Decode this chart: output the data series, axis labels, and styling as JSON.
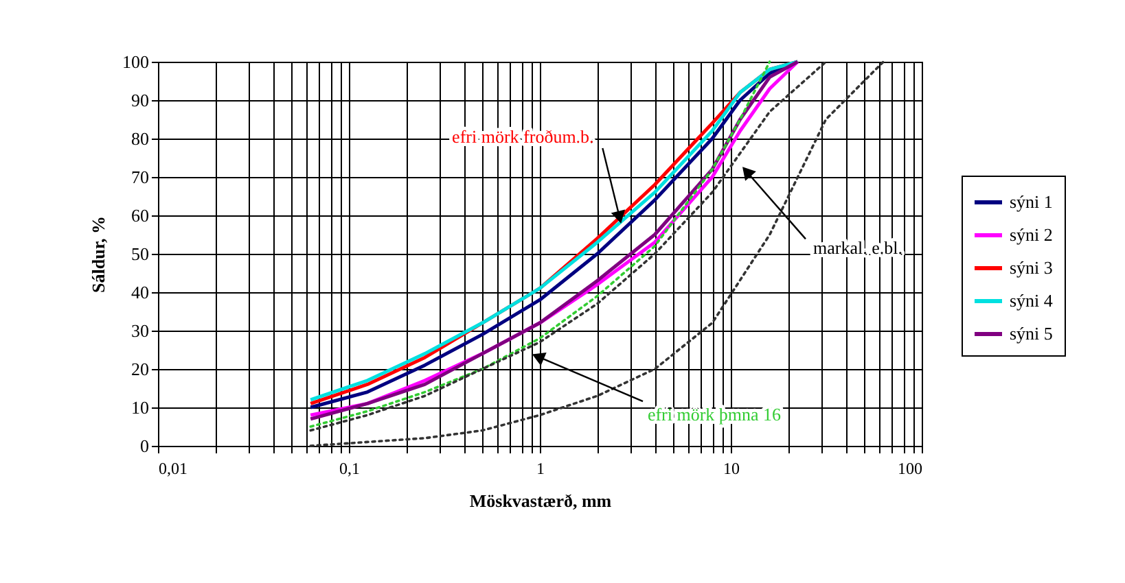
{
  "chart_data": {
    "type": "line",
    "xlabel": "Möskvastærð, mm",
    "ylabel": "Sáldur, %",
    "log": "x",
    "grid": true,
    "legend": "right",
    "xlim": [
      0.01,
      100
    ],
    "ylim": [
      0,
      100
    ],
    "xticks": [
      {
        "value": 0.01,
        "label": "0,01"
      },
      {
        "value": 0.02,
        "label": null
      },
      {
        "value": 0.03,
        "label": null
      },
      {
        "value": 0.04,
        "label": null
      },
      {
        "value": 0.05,
        "label": null
      },
      {
        "value": 0.06,
        "label": null
      },
      {
        "value": 0.07,
        "label": null
      },
      {
        "value": 0.08,
        "label": null
      },
      {
        "value": 0.09,
        "label": null
      },
      {
        "value": 0.1,
        "label": "0,1"
      },
      {
        "value": 0.2,
        "label": null
      },
      {
        "value": 0.3,
        "label": null
      },
      {
        "value": 0.4,
        "label": null
      },
      {
        "value": 0.5,
        "label": null
      },
      {
        "value": 0.6,
        "label": null
      },
      {
        "value": 0.7,
        "label": null
      },
      {
        "value": 0.8,
        "label": null
      },
      {
        "value": 0.9,
        "label": null
      },
      {
        "value": 1,
        "label": "1"
      },
      {
        "value": 2,
        "label": null
      },
      {
        "value": 3,
        "label": null
      },
      {
        "value": 4,
        "label": null
      },
      {
        "value": 5,
        "label": null
      },
      {
        "value": 6,
        "label": null
      },
      {
        "value": 7,
        "label": null
      },
      {
        "value": 8,
        "label": null
      },
      {
        "value": 9,
        "label": null
      },
      {
        "value": 10,
        "label": "10"
      },
      {
        "value": 20,
        "label": null
      },
      {
        "value": 30,
        "label": null
      },
      {
        "value": 40,
        "label": null
      },
      {
        "value": 50,
        "label": null
      },
      {
        "value": 60,
        "label": null
      },
      {
        "value": 70,
        "label": null
      },
      {
        "value": 80,
        "label": null
      },
      {
        "value": 90,
        "label": null
      },
      {
        "value": 100,
        "label": "100"
      }
    ],
    "yticks": [
      0,
      10,
      20,
      30,
      40,
      50,
      60,
      70,
      80,
      90,
      100
    ],
    "x": [
      0.063,
      0.125,
      0.25,
      0.5,
      1,
      2,
      4,
      8,
      11.2,
      16,
      22.4
    ],
    "series": [
      {
        "name": "sýni 1",
        "color": "#000080",
        "values": [
          10,
          14,
          21,
          29,
          38,
          50,
          64,
          80,
          90,
          97,
          100
        ]
      },
      {
        "name": "sýni 2",
        "color": "#ff00ff",
        "values": [
          8,
          11,
          17,
          24,
          32,
          42,
          53,
          70,
          82,
          93,
          100
        ]
      },
      {
        "name": "sýni 3",
        "color": "#ff0000",
        "values": [
          11,
          16,
          23,
          32,
          41,
          54,
          68,
          84,
          92,
          98,
          100
        ]
      },
      {
        "name": "sýni 4",
        "color": "#00e0e0",
        "values": [
          12,
          17,
          24,
          32,
          41,
          53,
          66,
          82,
          92,
          98,
          100
        ]
      },
      {
        "name": "sýni 5",
        "color": "#800080",
        "values": [
          7,
          11,
          16,
          24,
          32,
          43,
          55,
          72,
          85,
          96,
          100
        ]
      },
      {
        "color": "#33cc33",
        "line_style": "dotted",
        "x": [
          0.063,
          0.125,
          0.25,
          0.5,
          1,
          2,
          4,
          8,
          11.2,
          16
        ],
        "values": [
          5,
          9,
          14,
          20,
          28,
          39,
          52,
          72,
          85,
          100
        ]
      },
      {
        "color": "#333333",
        "line_style": "dotted",
        "x": [
          0.063,
          0.125,
          0.25,
          0.5,
          1,
          2,
          4,
          8,
          16,
          31.5
        ],
        "values": [
          4,
          8,
          13,
          20,
          27,
          37,
          50,
          66,
          87,
          100
        ]
      },
      {
        "color": "#333333",
        "line_style": "dotted",
        "x": [
          0.063,
          0.125,
          0.25,
          0.5,
          1,
          2,
          4,
          8,
          16,
          31.5,
          63
        ],
        "values": [
          0,
          1,
          2,
          4,
          8,
          13,
          20,
          32,
          55,
          85,
          100
        ]
      }
    ],
    "annotations": [
      {
        "text": "efri mörk froðum.b.",
        "x": 2.6,
        "y": 60
      },
      {
        "text": "markal. e.bl.",
        "x": 12.3,
        "y": 71
      },
      {
        "text": "efri mörk þmna 16",
        "x": 1,
        "y": 23
      }
    ]
  }
}
